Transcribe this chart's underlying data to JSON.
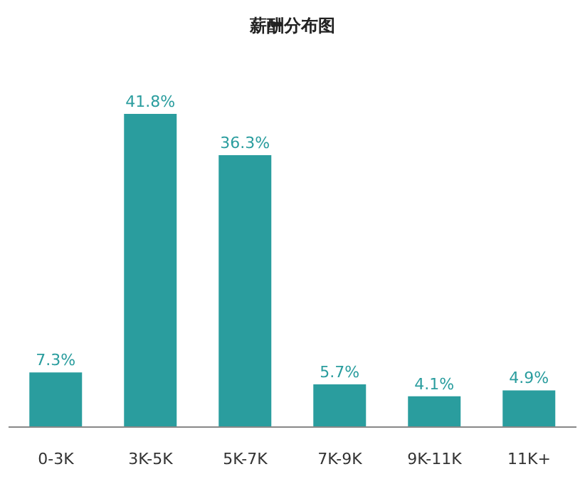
{
  "chart_data": {
    "type": "bar",
    "title": "薪酬分布图",
    "categories": [
      "0-3K",
      "3K-5K",
      "5K-7K",
      "7K-9K",
      "9K-11K",
      "11K+"
    ],
    "values": [
      7.3,
      41.8,
      36.3,
      5.7,
      4.1,
      4.9
    ],
    "value_labels": [
      "7.3%",
      "41.8%",
      "36.3%",
      "5.7%",
      "4.1%",
      "4.9%"
    ],
    "color": "#2a9d9e",
    "grid": false,
    "legend": false
  }
}
